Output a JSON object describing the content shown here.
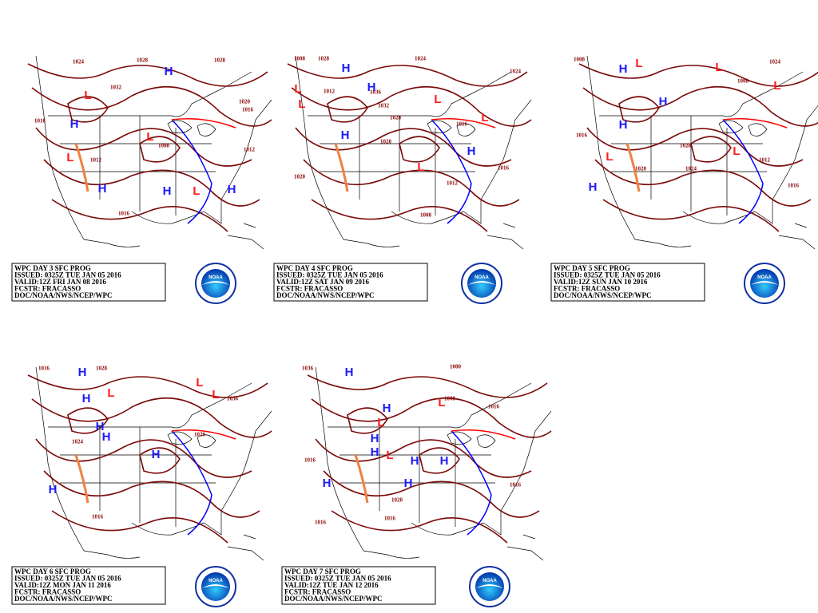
{
  "logo_text": "NOAA",
  "panels": [
    {
      "info": [
        "WPC DAY 3 SFC PROG",
        "ISSUED: 0325Z TUE JAN 05 2016",
        "VALID:12Z FRI JAN 08 2016",
        "FCSTR: FRACASSO",
        "DOC/NOAA/NWS/NCEP/WPC"
      ],
      "isobar_labels": [
        "1024",
        "1028",
        "1032",
        "1016",
        "1012",
        "1008",
        "1016",
        "1020",
        "1016",
        "1012",
        "1028"
      ],
      "centers": [
        "H",
        "H",
        "H",
        "H",
        "H",
        "L",
        "L",
        "L",
        "L"
      ]
    },
    {
      "info": [
        "WPC DAY 4 SFC PROG",
        "ISSUED: 0325Z TUE JAN 05 2016",
        "VALID:12Z SAT JAN 09 2016",
        "FCSTR: FRACASSO",
        "DOC/NOAA/NWS/NCEP/WPC"
      ],
      "isobar_labels": [
        "1008",
        "1028",
        "1036",
        "1032",
        "1028",
        "1020",
        "1024",
        "1024",
        "1016",
        "1012",
        "1008",
        "1020",
        "1016",
        "1012"
      ],
      "centers": [
        "H",
        "H",
        "H",
        "H",
        "L",
        "L",
        "L",
        "L",
        "L"
      ]
    },
    {
      "info": [
        "WPC DAY 5 SFC PROG",
        "ISSUED: 0325Z TUE JAN 05 2016",
        "VALID:12Z SUN JAN 10 2016",
        "FCSTR: FRACASSO",
        "DOC/NOAA/NWS/NCEP/WPC"
      ],
      "isobar_labels": [
        "1008",
        "1024",
        "1008",
        "1016",
        "1028",
        "1024",
        "1020",
        "1012",
        "1016"
      ],
      "centers": [
        "H",
        "H",
        "H",
        "H",
        "L",
        "L",
        "L",
        "L",
        "L"
      ]
    },
    {
      "info": [
        "WPC DAY 6 SFC PROG",
        "ISSUED: 0325Z TUE JAN 05 2016",
        "VALID:12Z MON JAN 11 2016",
        "FCSTR: FRACASSO",
        "DOC/NOAA/NWS/NCEP/WPC"
      ],
      "isobar_labels": [
        "1016",
        "1028",
        "1024",
        "1016",
        "1020",
        "1036"
      ],
      "centers": [
        "H",
        "H",
        "H",
        "H",
        "H",
        "H",
        "L",
        "L",
        "L"
      ]
    },
    {
      "info": [
        "WPC DAY 7 SFC PROG",
        "ISSUED: 0325Z TUE JAN 05 2016",
        "VALID:12Z TUE JAN 12 2016",
        "FCSTR: FRACASSO",
        "DOC/NOAA/NWS/NCEP/WPC"
      ],
      "isobar_labels": [
        "1036",
        "1000",
        "1008",
        "1016",
        "1016",
        "1020",
        "1016",
        "1016",
        "1016"
      ],
      "centers": [
        "H",
        "H",
        "H",
        "H",
        "H",
        "H",
        "H",
        "H",
        "L",
        "L",
        "L"
      ]
    }
  ]
}
